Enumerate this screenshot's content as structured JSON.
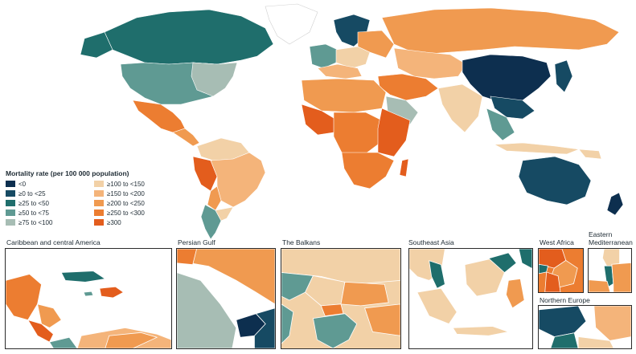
{
  "legend": {
    "title": "Mortality rate (per 100 000 population)",
    "items": [
      {
        "label": "<0",
        "color": "#0d2f4f"
      },
      {
        "label": "≥0 to <25",
        "color": "#164a63"
      },
      {
        "label": "≥25 to <50",
        "color": "#1f6e6c"
      },
      {
        "label": "≥50 to <75",
        "color": "#5f9a93"
      },
      {
        "label": "≥75 to <100",
        "color": "#a7bdb4"
      },
      {
        "label": "≥100 to <150",
        "color": "#f2d1a7"
      },
      {
        "label": "≥150 to <200",
        "color": "#f4b47a"
      },
      {
        "label": "≥200 to <250",
        "color": "#f09a50"
      },
      {
        "label": "≥250 to <300",
        "color": "#ec7d31"
      },
      {
        "label": "≥300",
        "color": "#e35d1d"
      }
    ]
  },
  "insets": [
    {
      "id": "caribbean",
      "label": "Caribbean and central America"
    },
    {
      "id": "persian-gulf",
      "label": "Persian Gulf"
    },
    {
      "id": "balkans",
      "label": "The Balkans"
    },
    {
      "id": "southeast-asia",
      "label": "Southeast Asia"
    },
    {
      "id": "west-africa",
      "label": "West Africa"
    },
    {
      "id": "eastern-med",
      "label": "Eastern\nMediterranean"
    },
    {
      "id": "northern-europe",
      "label": "Northern Europe"
    }
  ]
}
